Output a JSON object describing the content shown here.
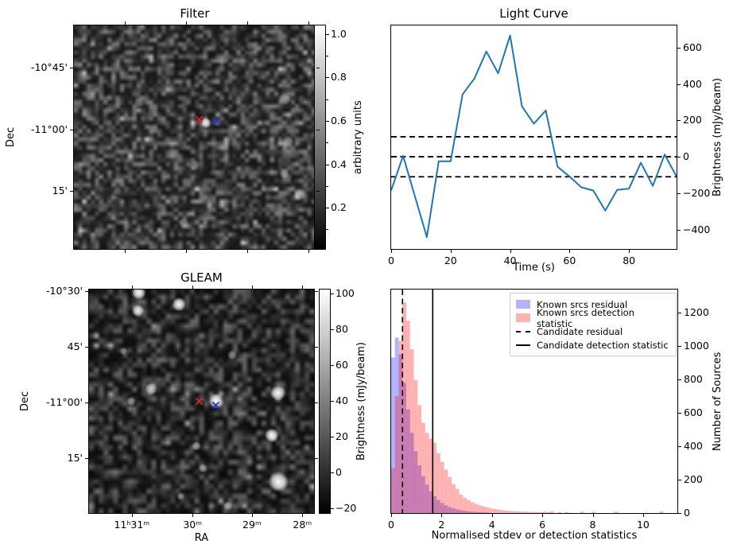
{
  "figure": {
    "background": "#ffffff"
  },
  "chart_data": [
    {
      "id": "filter",
      "type": "image",
      "title": "Filter",
      "ylabel": "Dec",
      "yticks": {
        "labels": [
          "-10°45'",
          "-11°00'",
          "15'"
        ],
        "fracs": [
          0.189,
          0.467,
          0.74
        ]
      },
      "xticks": {
        "labels": [],
        "fracs": [
          0.21,
          0.464,
          0.717,
          0.971
        ]
      },
      "colorbar": {
        "label": "arbitrary units",
        "tick_values": [
          0.2,
          0.4,
          0.6,
          0.8,
          1.0
        ],
        "tick_labels": [
          "0.2",
          "0.4",
          "0.6",
          "0.8",
          "1.0"
        ],
        "minor_tick_values": [
          0.1,
          0.3,
          0.5,
          0.7,
          0.9
        ],
        "range": [
          0.01,
          1.04
        ]
      },
      "markers": [
        {
          "name": "red-x",
          "color": "#dd2222",
          "fx": 0.519,
          "fy": 0.42
        },
        {
          "name": "blue-x",
          "color": "#2233cc",
          "fx": 0.591,
          "fy": 0.429
        }
      ],
      "noise": {
        "seed": 11,
        "cols": 58,
        "rows": 54,
        "base": 22,
        "spread": 110,
        "bright_chance": 0.07
      },
      "sources": [
        {
          "fx": 0.546,
          "fy": 0.436,
          "r": 7,
          "a": 0.95
        },
        {
          "fx": 0.872,
          "fy": 0.33,
          "r": 8,
          "a": 0.5
        },
        {
          "fx": 0.885,
          "fy": 0.52,
          "r": 8,
          "a": 0.48
        },
        {
          "fx": 0.87,
          "fy": 0.66,
          "r": 7,
          "a": 0.42
        },
        {
          "fx": 0.935,
          "fy": 0.755,
          "r": 8,
          "a": 0.5
        },
        {
          "fx": 0.5,
          "fy": 0.625,
          "r": 7,
          "a": 0.42
        },
        {
          "fx": 0.27,
          "fy": 0.345,
          "r": 7,
          "a": 0.38
        },
        {
          "fx": 0.455,
          "fy": 0.885,
          "r": 7,
          "a": 0.42
        },
        {
          "fx": 0.73,
          "fy": 0.09,
          "r": 6,
          "a": 0.32
        },
        {
          "fx": 0.18,
          "fy": 0.74,
          "r": 6,
          "a": 0.32
        }
      ]
    },
    {
      "id": "light_curve",
      "type": "line",
      "title": "Light Curve",
      "xlabel": "Time (s)",
      "ylabel": "Brightness (mJy/beam)",
      "line_color": "#1f77b4",
      "x": [
        0,
        4,
        8,
        12,
        16,
        20,
        24,
        28,
        32,
        36,
        40,
        44,
        48,
        52,
        56,
        60,
        64,
        68,
        72,
        76,
        80,
        84,
        88,
        92,
        96
      ],
      "y": [
        -185,
        5,
        -218,
        -442,
        -25,
        -25,
        343,
        430,
        579,
        459,
        667,
        277,
        182,
        255,
        -55,
        -109,
        -168,
        -186,
        -296,
        -182,
        -175,
        -33,
        -160,
        12,
        -109
      ],
      "hlines": {
        "style": "dashed",
        "color": "#000000",
        "values": [
          110,
          0,
          -110
        ]
      },
      "xlim": [
        0,
        96
      ],
      "ylim": [
        -507,
        722
      ],
      "xticks": {
        "values": [
          0,
          20,
          40,
          60,
          80
        ],
        "labels": [
          "0",
          "20",
          "40",
          "60",
          "80"
        ]
      },
      "yticks": {
        "values": [
          -400,
          -200,
          0,
          200,
          400,
          600
        ],
        "labels": [
          "−400",
          "−200",
          "0",
          "200",
          "400",
          "600"
        ]
      }
    },
    {
      "id": "gleam",
      "type": "image",
      "title": "GLEAM",
      "xlabel": "RA",
      "ylabel": "Dec",
      "yticks": {
        "labels": [
          "-10°30'",
          "45'",
          "-11°00'",
          "15'"
        ],
        "fracs": [
          0.006,
          0.257,
          0.504,
          0.754
        ]
      },
      "xticks": {
        "labels": [
          "11ʰ31ᵐ",
          "30ᵐ",
          "29ᵐ",
          "28ᵐ"
        ],
        "fracs": [
          0.19,
          0.46,
          0.724,
          0.948
        ]
      },
      "colorbar": {
        "label": "Brightness (mJy/beam)",
        "tick_values": [
          -20,
          0,
          20,
          40,
          60,
          80,
          100
        ],
        "tick_labels": [
          "−20",
          "0",
          "20",
          "40",
          "60",
          "80",
          "100"
        ],
        "minor_tick_values": [],
        "range": [
          -22.7,
          102
        ]
      },
      "markers": [
        {
          "name": "red-x",
          "color": "#dd2222",
          "fx": 0.491,
          "fy": 0.5
        },
        {
          "name": "blue-x",
          "color": "#2233cc",
          "fx": 0.562,
          "fy": 0.517
        }
      ],
      "noise": {
        "seed": 29,
        "cols": 47,
        "rows": 46,
        "base": 12,
        "spread": 95,
        "bright_chance": 0.05
      },
      "sources": [
        {
          "fx": 0.222,
          "fy": 0.014,
          "r": 9,
          "a": 1
        },
        {
          "fx": 0.4,
          "fy": 0.067,
          "r": 9,
          "a": 1
        },
        {
          "fx": 0.218,
          "fy": 0.095,
          "r": 8,
          "a": 0.95
        },
        {
          "fx": 0.276,
          "fy": 0.445,
          "r": 8,
          "a": 0.8
        },
        {
          "fx": 0.187,
          "fy": 0.5,
          "r": 6,
          "a": 0.55
        },
        {
          "fx": 0.565,
          "fy": 0.498,
          "r": 10,
          "a": 1
        },
        {
          "fx": 0.84,
          "fy": 0.462,
          "r": 10,
          "a": 1
        },
        {
          "fx": 0.812,
          "fy": 0.652,
          "r": 9,
          "a": 1
        },
        {
          "fx": 0.636,
          "fy": 0.293,
          "r": 6,
          "a": 0.5
        },
        {
          "fx": 0.477,
          "fy": 0.7,
          "r": 6,
          "a": 0.6
        },
        {
          "fx": 0.507,
          "fy": 0.8,
          "r": 6,
          "a": 0.5
        },
        {
          "fx": 0.842,
          "fy": 0.86,
          "r": 13,
          "a": 1
        },
        {
          "fx": 0.618,
          "fy": 0.968,
          "r": 6,
          "a": 0.5
        },
        {
          "fx": 0.406,
          "fy": 0.925,
          "r": 5,
          "a": 0.45
        },
        {
          "fx": 0.154,
          "fy": 0.276,
          "r": 5,
          "a": 0.4
        }
      ]
    },
    {
      "id": "histogram",
      "type": "histogram",
      "xlabel": "Normalised stdev or detection statistics",
      "ylabel": "Number of Sources",
      "bin_start": 0,
      "bin_width": 0.15,
      "series": [
        {
          "name": "Known srcs residual",
          "color": "rgba(0,0,255,0.3)",
          "values": [
            930,
            1050,
            950,
            780,
            620,
            480,
            370,
            285,
            220,
            170,
            130,
            100,
            78,
            60,
            46,
            36,
            28,
            21,
            16,
            13,
            10,
            8,
            6,
            5,
            4,
            3
          ]
        },
        {
          "name": "Known srcs detection statistic",
          "color": "rgba(255,0,0,0.3)",
          "values": [
            270,
            700,
            1030,
            1260,
            1150,
            980,
            795,
            645,
            540,
            480,
            445,
            420,
            358,
            307,
            260,
            215,
            172,
            143,
            110,
            92,
            78,
            65,
            55,
            46,
            40,
            34,
            28,
            24,
            20,
            17,
            15,
            13,
            11,
            10,
            9,
            8,
            7,
            6,
            6,
            5,
            8,
            5,
            10,
            0,
            5,
            0,
            6,
            0,
            0,
            0,
            8,
            0,
            0,
            7,
            0,
            0,
            0,
            0,
            0,
            9,
            0,
            0,
            0,
            0,
            0,
            0,
            0,
            0,
            0,
            0,
            0,
            10,
            0,
            0
          ]
        }
      ],
      "vlines": [
        {
          "name": "Candidate residual",
          "x": 0.45,
          "style": "dashed",
          "color": "#000000"
        },
        {
          "name": "Candidate detection statistic",
          "x": 1.65,
          "style": "solid",
          "color": "#000000"
        }
      ],
      "xlim": [
        0,
        11.36
      ],
      "ylim": [
        0,
        1337
      ],
      "xticks": {
        "values": [
          0,
          2,
          4,
          6,
          8,
          10
        ],
        "labels": [
          "0",
          "2",
          "4",
          "6",
          "8",
          "10"
        ]
      },
      "yticks": {
        "values": [
          0,
          200,
          400,
          600,
          800,
          1000,
          1200
        ],
        "labels": [
          "0",
          "200",
          "400",
          "600",
          "800",
          "1000",
          "1200"
        ]
      }
    }
  ]
}
